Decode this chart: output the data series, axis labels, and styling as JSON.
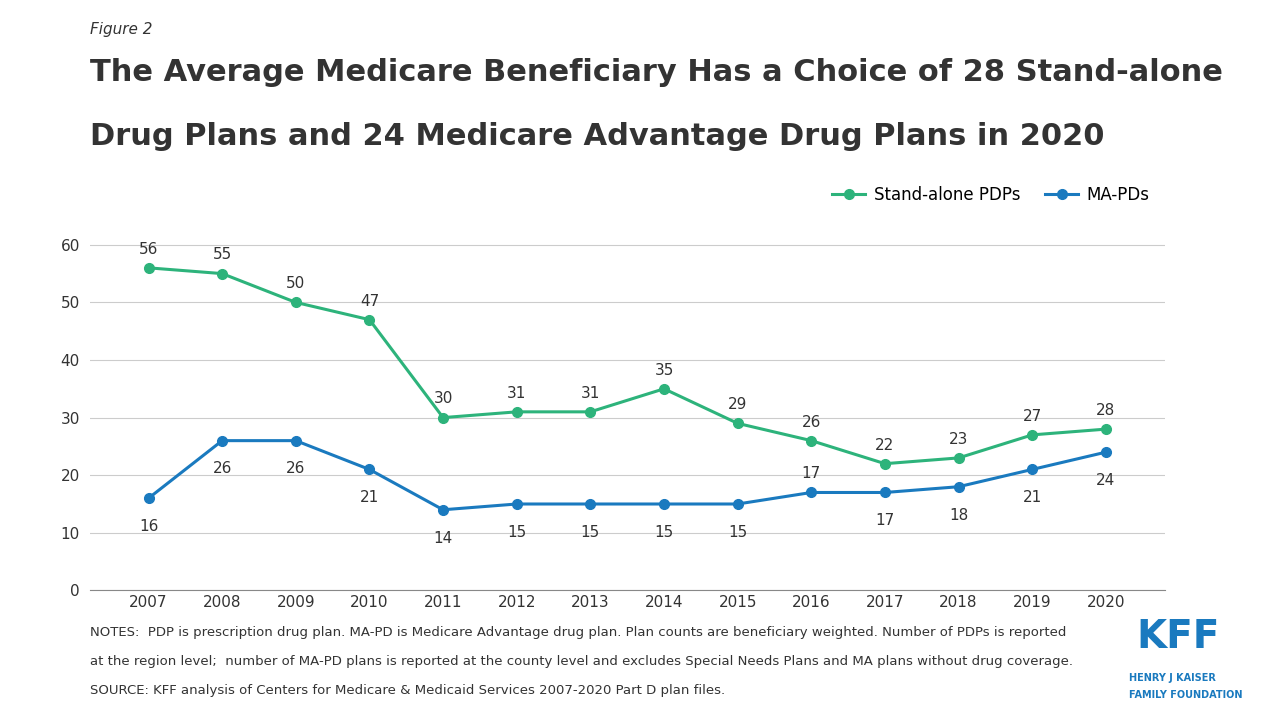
{
  "years": [
    2007,
    2008,
    2009,
    2010,
    2011,
    2012,
    2013,
    2014,
    2015,
    2016,
    2017,
    2018,
    2019,
    2020
  ],
  "pdp_values": [
    56,
    55,
    50,
    47,
    30,
    31,
    31,
    35,
    29,
    26,
    22,
    23,
    27,
    28
  ],
  "mapd_values": [
    16,
    26,
    26,
    21,
    14,
    15,
    15,
    15,
    15,
    17,
    17,
    18,
    21,
    24
  ],
  "pdp_color": "#2db37b",
  "mapd_color": "#1a7abf",
  "figure_label": "Figure 2",
  "title_line1": "The Average Medicare Beneficiary Has a Choice of 28 Stand-alone",
  "title_line2": "Drug Plans and 24 Medicare Advantage Drug Plans in 2020",
  "legend_pdp": "Stand-alone PDPs",
  "legend_mapd": "MA-PDs",
  "ylim": [
    0,
    65
  ],
  "yticks": [
    0,
    10,
    20,
    30,
    40,
    50,
    60
  ],
  "notes_line1": "NOTES:  PDP is prescription drug plan. MA-PD is Medicare Advantage drug plan. Plan counts are beneficiary weighted. Number of PDPs is reported",
  "notes_line2": "at the region level;  number of MA-PD plans is reported at the county level and excludes Special Needs Plans and MA plans without drug coverage.",
  "notes_line3": "SOURCE: KFF analysis of Centers for Medicare & Medicaid Services 2007-2020 Part D plan files.",
  "bg_color": "#ffffff",
  "text_color": "#333333",
  "axis_color": "#888888"
}
